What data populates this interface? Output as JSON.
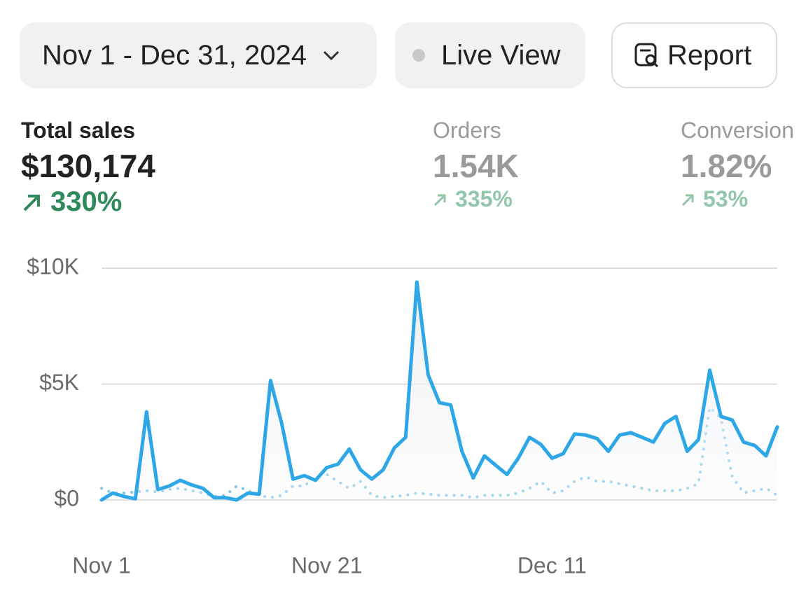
{
  "toolbar": {
    "date_range": "Nov 1 - Dec 31, 2024",
    "live_view": "Live View",
    "report": "Report"
  },
  "metrics": [
    {
      "label": "Total sales",
      "value": "$130,174",
      "change": "330%"
    },
    {
      "label": "Orders",
      "value": "1.54K",
      "change": "335%"
    },
    {
      "label": "Conversion rate",
      "value": "1.82%",
      "change": "53%"
    }
  ],
  "chart_data": {
    "type": "line",
    "categories": [
      "Nov 1",
      null,
      null,
      null,
      null,
      null,
      null,
      null,
      null,
      null,
      null,
      null,
      null,
      null,
      null,
      null,
      null,
      null,
      null,
      null,
      "Nov 21",
      null,
      null,
      null,
      null,
      null,
      null,
      null,
      null,
      null,
      null,
      null,
      null,
      null,
      null,
      null,
      null,
      null,
      null,
      null,
      "Dec 11",
      null,
      null,
      null,
      null,
      null,
      null,
      null,
      null,
      null,
      null,
      null,
      null,
      null,
      null,
      null,
      null,
      null,
      null,
      null,
      null
    ],
    "series": [
      {
        "color": "#2ea7e6",
        "style": "solid",
        "area": true,
        "values": [
          0,
          300,
          150,
          50,
          3800,
          450,
          600,
          850,
          650,
          500,
          100,
          100,
          0,
          300,
          250,
          5150,
          3300,
          900,
          1050,
          850,
          1400,
          1550,
          2200,
          1300,
          900,
          1300,
          2250,
          2700,
          9400,
          5400,
          4200,
          4100,
          2100,
          950,
          1900,
          1500,
          1100,
          1800,
          2700,
          2400,
          1800,
          2000,
          2850,
          2800,
          2650,
          2100,
          2800,
          2900,
          2700,
          2500,
          3300,
          3600,
          2100,
          2600,
          5600,
          3600,
          3450,
          2500,
          2350,
          1900,
          3150
        ]
      },
      {
        "color": "#7cc6ea",
        "style": "dotted",
        "area": false,
        "values": [
          500,
          300,
          300,
          350,
          400,
          350,
          450,
          500,
          400,
          300,
          150,
          200,
          600,
          400,
          200,
          100,
          200,
          600,
          600,
          1000,
          1100,
          800,
          500,
          800,
          200,
          100,
          150,
          200,
          300,
          250,
          200,
          200,
          200,
          100,
          200,
          200,
          200,
          300,
          500,
          800,
          300,
          400,
          800,
          1000,
          800,
          800,
          700,
          600,
          500,
          400,
          400,
          400,
          500,
          700,
          4000,
          3500,
          1000,
          300,
          400,
          500,
          200
        ]
      }
    ],
    "ylim": [
      0,
      10000
    ],
    "yticks": [
      {
        "value": 0,
        "label": "$0"
      },
      {
        "value": 5000,
        "label": "$5K"
      },
      {
        "value": 10000,
        "label": "$10K"
      }
    ],
    "grid": true
  }
}
